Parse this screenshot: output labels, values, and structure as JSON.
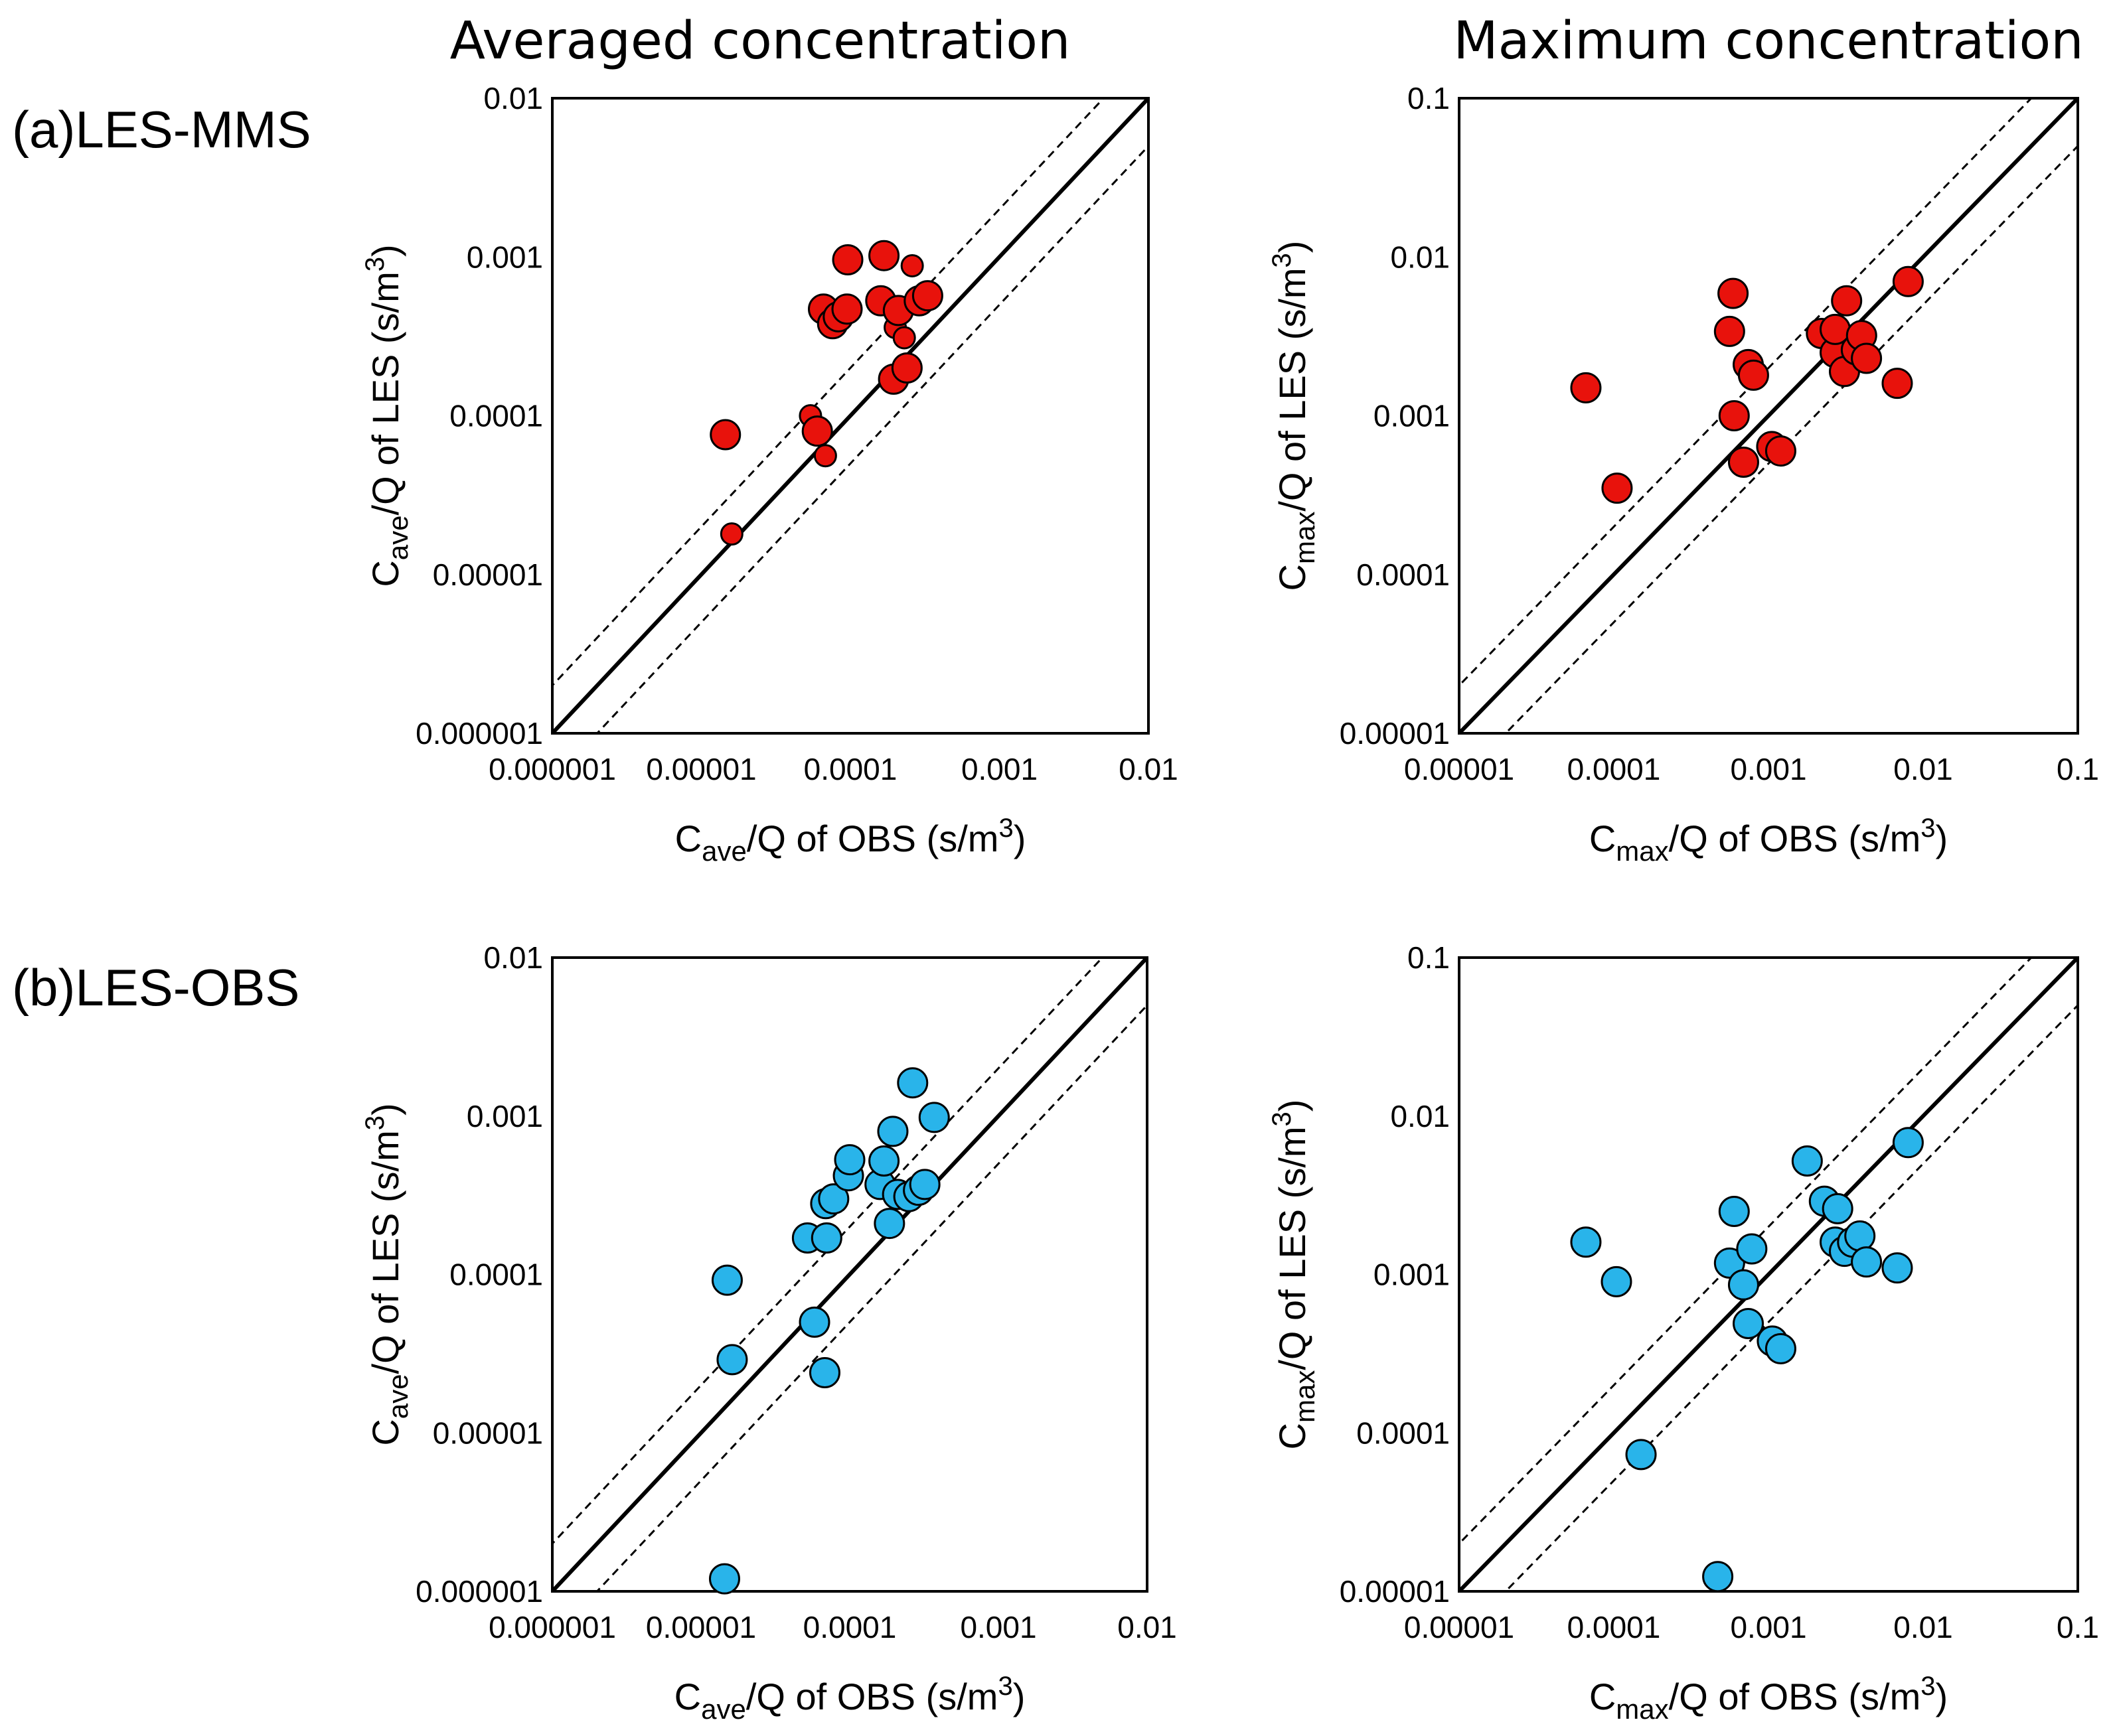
{
  "titles": {
    "averaged": "Averaged concentration",
    "maximum": "Maximum concentration"
  },
  "rows": {
    "a": "(a)LES-MMS",
    "b": "(b)LES-OBS"
  },
  "labels": {
    "ave_x": {
      "pre": "C",
      "sub": "ave",
      "post": "/Q of OBS (s/m",
      "sup": "3",
      "end": ")"
    },
    "ave_y": {
      "pre": "C",
      "sub": "ave",
      "post": "/Q of LES (s/m",
      "sup": "3",
      "end": ")"
    },
    "max_x": {
      "pre": "C",
      "sub": "max",
      "post": "/Q of OBS (s/m",
      "sup": "3",
      "end": ")"
    },
    "max_y": {
      "pre": "C",
      "sub": "max",
      "post": "/Q of LES (s/m",
      "sup": "3",
      "end": ")"
    }
  },
  "colors": {
    "mms": "#e8120c",
    "obs": "#29b4ea"
  },
  "chart_data": [
    {
      "id": "a-ave",
      "type": "scatter",
      "scale": "log",
      "xlim": [
        1e-06,
        0.01
      ],
      "ylim": [
        1e-06,
        0.01
      ],
      "xticks": [
        "0.000001",
        "0.00001",
        "0.0001",
        "0.001",
        "0.01"
      ],
      "yticks": [
        "0.000001",
        "0.00001",
        "0.0001",
        "0.001",
        "0.01"
      ],
      "xlabel": "ave_x",
      "ylabel": "ave_y",
      "color": "mms",
      "reference_lines": {
        "one_to_one": true,
        "factor": 2
      },
      "points": [
        {
          "x": 1.45e-05,
          "y": 7.6e-05,
          "s": "big"
        },
        {
          "x": 1.6e-05,
          "y": 1.8e-05,
          "s": "small"
        },
        {
          "x": 5.4e-05,
          "y": 0.0001,
          "s": "small"
        },
        {
          "x": 6e-05,
          "y": 8e-05,
          "s": "big"
        },
        {
          "x": 6.8e-05,
          "y": 5.6e-05,
          "s": "small"
        },
        {
          "x": 6.6e-05,
          "y": 0.00047,
          "s": "big"
        },
        {
          "x": 7.6e-05,
          "y": 0.00038,
          "s": "big"
        },
        {
          "x": 8.3e-05,
          "y": 0.00042,
          "s": "big"
        },
        {
          "x": 9.5e-05,
          "y": 0.00047,
          "s": "big"
        },
        {
          "x": 9.6e-05,
          "y": 0.00096,
          "s": "big"
        },
        {
          "x": 0.000168,
          "y": 0.00102,
          "s": "big"
        },
        {
          "x": 0.00016,
          "y": 0.00053,
          "s": "big"
        },
        {
          "x": 0.0002,
          "y": 0.00036,
          "s": "small"
        },
        {
          "x": 0.000195,
          "y": 0.00017,
          "s": "big"
        },
        {
          "x": 0.00021,
          "y": 0.00046,
          "s": "big"
        },
        {
          "x": 0.00023,
          "y": 0.00031,
          "s": "small"
        },
        {
          "x": 0.00024,
          "y": 0.0002,
          "s": "big"
        },
        {
          "x": 0.00026,
          "y": 0.00088,
          "s": "small"
        },
        {
          "x": 0.00029,
          "y": 0.00053,
          "s": "big"
        },
        {
          "x": 0.00033,
          "y": 0.00057,
          "s": "big"
        }
      ]
    },
    {
      "id": "a-max",
      "type": "scatter",
      "scale": "log",
      "xlim": [
        1e-05,
        0.1
      ],
      "ylim": [
        1e-05,
        0.1
      ],
      "xticks": [
        "0.00001",
        "0.0001",
        "0.001",
        "0.01",
        "0.1"
      ],
      "yticks": [
        "0.00001",
        "0.0001",
        "0.001",
        "0.01",
        "0.1"
      ],
      "xlabel": "max_x",
      "ylabel": "max_y",
      "color": "mms",
      "reference_lines": {
        "one_to_one": true,
        "factor": 2
      },
      "points": [
        {
          "x": 6.6e-05,
          "y": 0.0015,
          "s": "big"
        },
        {
          "x": 0.000105,
          "y": 0.00035,
          "s": "big"
        },
        {
          "x": 0.00056,
          "y": 0.0034,
          "s": "big"
        },
        {
          "x": 0.00059,
          "y": 0.0059,
          "s": "big"
        },
        {
          "x": 0.0006,
          "y": 0.001,
          "s": "big"
        },
        {
          "x": 0.00069,
          "y": 0.00051,
          "s": "big"
        },
        {
          "x": 0.00074,
          "y": 0.0021,
          "s": "big"
        },
        {
          "x": 0.0008,
          "y": 0.0018,
          "s": "big"
        },
        {
          "x": 0.00105,
          "y": 0.00064,
          "s": "big"
        },
        {
          "x": 0.0012,
          "y": 0.0006,
          "s": "big"
        },
        {
          "x": 0.0022,
          "y": 0.0033,
          "s": "big"
        },
        {
          "x": 0.0027,
          "y": 0.0025,
          "s": "big"
        },
        {
          "x": 0.0027,
          "y": 0.0035,
          "s": "big"
        },
        {
          "x": 0.0031,
          "y": 0.0019,
          "s": "big"
        },
        {
          "x": 0.0032,
          "y": 0.0053,
          "s": "big"
        },
        {
          "x": 0.0037,
          "y": 0.0026,
          "s": "big"
        },
        {
          "x": 0.004,
          "y": 0.0032,
          "s": "big"
        },
        {
          "x": 0.0043,
          "y": 0.0023,
          "s": "big"
        },
        {
          "x": 0.0068,
          "y": 0.0016,
          "s": "big"
        },
        {
          "x": 0.008,
          "y": 0.007,
          "s": "big"
        }
      ]
    },
    {
      "id": "b-ave",
      "type": "scatter",
      "scale": "log",
      "xlim": [
        1e-06,
        0.01
      ],
      "ylim": [
        1e-06,
        0.01
      ],
      "xticks": [
        "0.000001",
        "0.00001",
        "0.0001",
        "0.001",
        "0.01"
      ],
      "yticks": [
        "0.000001",
        "0.00001",
        "0.0001",
        "0.001",
        "0.01"
      ],
      "xlabel": "ave_x",
      "ylabel": "ave_y",
      "color": "obs",
      "reference_lines": {
        "one_to_one": true,
        "factor": 2
      },
      "points": [
        {
          "x": 1.44e-05,
          "y": 1.2e-06,
          "s": "big"
        },
        {
          "x": 1.5e-05,
          "y": 9.2e-05,
          "s": "big"
        },
        {
          "x": 1.62e-05,
          "y": 2.9e-05,
          "s": "big"
        },
        {
          "x": 5.2e-05,
          "y": 0.00017,
          "s": "big"
        },
        {
          "x": 5.8e-05,
          "y": 5e-05,
          "s": "big"
        },
        {
          "x": 6.8e-05,
          "y": 2.4e-05,
          "s": "big"
        },
        {
          "x": 7e-05,
          "y": 0.00017,
          "s": "big"
        },
        {
          "x": 6.9e-05,
          "y": 0.00028,
          "s": "big"
        },
        {
          "x": 7.8e-05,
          "y": 0.0003,
          "s": "big"
        },
        {
          "x": 9.8e-05,
          "y": 0.00042,
          "s": "big"
        },
        {
          "x": 0.0001,
          "y": 0.00053,
          "s": "big"
        },
        {
          "x": 0.00016,
          "y": 0.00037,
          "s": "big"
        },
        {
          "x": 0.00017,
          "y": 0.00052,
          "s": "big"
        },
        {
          "x": 0.000185,
          "y": 0.00021,
          "s": "big"
        },
        {
          "x": 0.000195,
          "y": 0.0008,
          "s": "big"
        },
        {
          "x": 0.00021,
          "y": 0.00032,
          "s": "big"
        },
        {
          "x": 0.00025,
          "y": 0.00031,
          "s": "big"
        },
        {
          "x": 0.000265,
          "y": 0.00162,
          "s": "big"
        },
        {
          "x": 0.00029,
          "y": 0.00034,
          "s": "big"
        },
        {
          "x": 0.00032,
          "y": 0.00037,
          "s": "big"
        },
        {
          "x": 0.00037,
          "y": 0.00098,
          "s": "big"
        }
      ]
    },
    {
      "id": "b-max",
      "type": "scatter",
      "scale": "log",
      "xlim": [
        1e-05,
        0.1
      ],
      "ylim": [
        1e-05,
        0.1
      ],
      "xticks": [
        "0.00001",
        "0.0001",
        "0.001",
        "0.01",
        "0.1"
      ],
      "yticks": [
        "0.00001",
        "0.0001",
        "0.001",
        "0.01",
        "0.1"
      ],
      "xlabel": "max_x",
      "ylabel": "max_y",
      "color": "obs",
      "reference_lines": {
        "one_to_one": true,
        "factor": 2
      },
      "points": [
        {
          "x": 6.6e-05,
          "y": 0.0016,
          "s": "big"
        },
        {
          "x": 0.000104,
          "y": 0.0009,
          "s": "big"
        },
        {
          "x": 0.00015,
          "y": 7.3e-05,
          "s": "big"
        },
        {
          "x": 0.00047,
          "y": 1.24e-05,
          "s": "big"
        },
        {
          "x": 0.00056,
          "y": 0.00118,
          "s": "big"
        },
        {
          "x": 0.0006,
          "y": 0.0025,
          "s": "big"
        },
        {
          "x": 0.00069,
          "y": 0.00086,
          "s": "big"
        },
        {
          "x": 0.00074,
          "y": 0.00049,
          "s": "big"
        },
        {
          "x": 0.00078,
          "y": 0.00145,
          "s": "big"
        },
        {
          "x": 0.00106,
          "y": 0.00038,
          "s": "big"
        },
        {
          "x": 0.0012,
          "y": 0.00034,
          "s": "big"
        },
        {
          "x": 0.00178,
          "y": 0.0052,
          "s": "big"
        },
        {
          "x": 0.0023,
          "y": 0.0029,
          "s": "big"
        },
        {
          "x": 0.0027,
          "y": 0.0016,
          "s": "big"
        },
        {
          "x": 0.0028,
          "y": 0.0026,
          "s": "big"
        },
        {
          "x": 0.0031,
          "y": 0.0014,
          "s": "big"
        },
        {
          "x": 0.0035,
          "y": 0.0016,
          "s": "big"
        },
        {
          "x": 0.0039,
          "y": 0.00175,
          "s": "big"
        },
        {
          "x": 0.0043,
          "y": 0.0012,
          "s": "big"
        },
        {
          "x": 0.0068,
          "y": 0.0011,
          "s": "big"
        },
        {
          "x": 0.008,
          "y": 0.0068,
          "s": "big"
        }
      ]
    }
  ]
}
